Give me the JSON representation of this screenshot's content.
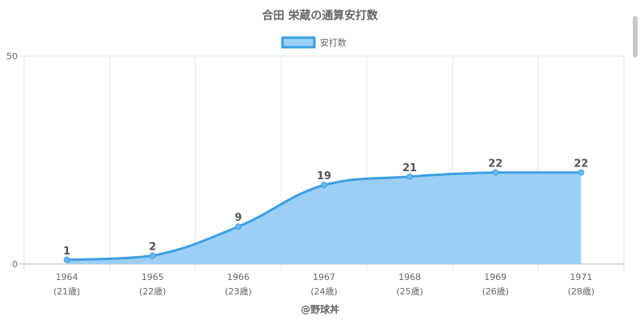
{
  "chart_data": {
    "type": "area",
    "title": "合田 栄蔵の通算安打数",
    "categories": [
      "1964",
      "1965",
      "1966",
      "1967",
      "1968",
      "1969",
      "1971"
    ],
    "category_sublabels": [
      "(21歳)",
      "(22歳)",
      "(23歳)",
      "(24歳)",
      "(25歳)",
      "(26歳)",
      "(28歳)"
    ],
    "series": [
      {
        "name": "安打数",
        "values": [
          1,
          2,
          9,
          19,
          21,
          22,
          22
        ]
      }
    ],
    "ylim": [
      0,
      50
    ],
    "yticks": [
      "0",
      "50"
    ],
    "legend_position": "top-center",
    "grid": true,
    "colors": {
      "line": "#3d9fe3",
      "fill": "#9ccff5",
      "grid": "#e6e6e6",
      "axis": "#bbbbbb"
    }
  },
  "footer": {
    "credit": "@野球丼"
  }
}
